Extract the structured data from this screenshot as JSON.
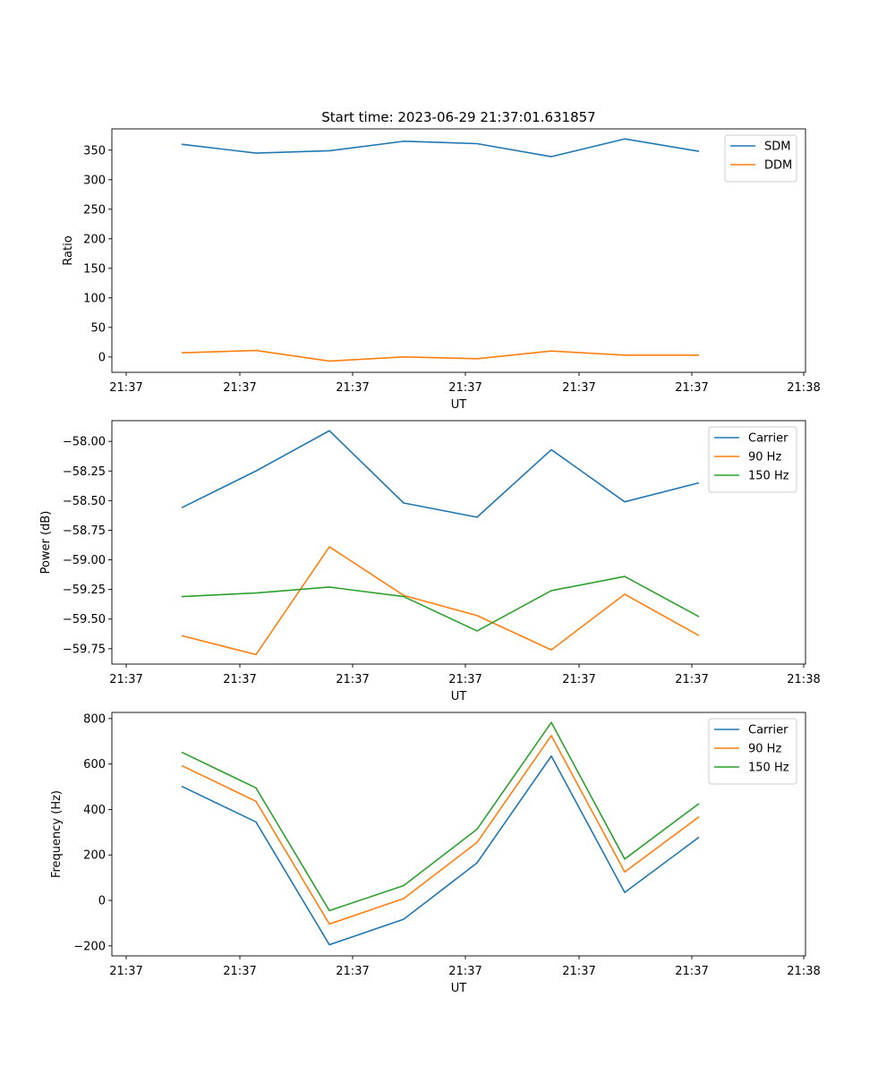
{
  "title": "Start time: 2023-06-29 21:37:01.631857",
  "colors": {
    "blue": "#1f77b4",
    "orange": "#ff7f0e",
    "green": "#2ca02c"
  },
  "chart_data": [
    {
      "type": "line",
      "xlabel": "UT",
      "ylabel": "Ratio",
      "x_tick_labels": [
        "21:37",
        "21:37",
        "21:37",
        "21:37",
        "21:37",
        "21:37",
        "21:38"
      ],
      "y_ticks": [
        0,
        50,
        100,
        150,
        200,
        250,
        300,
        350
      ],
      "y_tick_labels": [
        "0",
        "50",
        "100",
        "150",
        "200",
        "250",
        "300",
        "350"
      ],
      "ylim": [
        -26,
        386
      ],
      "legend_position": "top-right",
      "series": [
        {
          "name": "SDM",
          "color": "#1f77b4",
          "values": [
            360,
            345,
            349,
            365,
            361,
            339,
            369,
            348
          ]
        },
        {
          "name": "DDM",
          "color": "#ff7f0e",
          "values": [
            7,
            11,
            -7,
            0,
            -3,
            10,
            3,
            3
          ]
        }
      ]
    },
    {
      "type": "line",
      "xlabel": "UT",
      "ylabel": "Power (dB)",
      "x_tick_labels": [
        "21:37",
        "21:37",
        "21:37",
        "21:37",
        "21:37",
        "21:37",
        "21:38"
      ],
      "y_ticks": [
        -59.75,
        -59.5,
        -59.25,
        -59.0,
        -58.75,
        -58.5,
        -58.25,
        -58.0
      ],
      "y_tick_labels": [
        "−59.75",
        "−59.50",
        "−59.25",
        "−59.00",
        "−58.75",
        "−58.50",
        "−58.25",
        "−58.00"
      ],
      "ylim": [
        -59.88,
        -57.825
      ],
      "legend_position": "top-right",
      "series": [
        {
          "name": "Carrier",
          "color": "#1f77b4",
          "values": [
            -58.56,
            -58.25,
            -57.91,
            -58.52,
            -58.64,
            -58.07,
            -58.51,
            -58.35
          ]
        },
        {
          "name": "90 Hz",
          "color": "#ff7f0e",
          "values": [
            -59.64,
            -59.8,
            -58.89,
            -59.3,
            -59.47,
            -59.76,
            -59.29,
            -59.64
          ]
        },
        {
          "name": "150 Hz",
          "color": "#2ca02c",
          "values": [
            -59.31,
            -59.28,
            -59.23,
            -59.31,
            -59.6,
            -59.26,
            -59.14,
            -59.48
          ]
        }
      ]
    },
    {
      "type": "line",
      "xlabel": "UT",
      "ylabel": "Frequency (Hz)",
      "x_tick_labels": [
        "21:37",
        "21:37",
        "21:37",
        "21:37",
        "21:37",
        "21:37",
        "21:38"
      ],
      "y_ticks": [
        -200,
        0,
        200,
        400,
        600,
        800
      ],
      "y_tick_labels": [
        "−200",
        "0",
        "200",
        "400",
        "600",
        "800"
      ],
      "ylim": [
        -244,
        827
      ],
      "legend_position": "top-right",
      "series": [
        {
          "name": "Carrier",
          "color": "#1f77b4",
          "values": [
            502,
            345,
            -195,
            -83,
            165,
            635,
            35,
            278
          ]
        },
        {
          "name": "90 Hz",
          "color": "#ff7f0e",
          "values": [
            593,
            436,
            -104,
            8,
            255,
            725,
            125,
            368
          ]
        },
        {
          "name": "150 Hz",
          "color": "#2ca02c",
          "values": [
            652,
            495,
            -45,
            65,
            313,
            783,
            182,
            426
          ]
        }
      ]
    }
  ]
}
